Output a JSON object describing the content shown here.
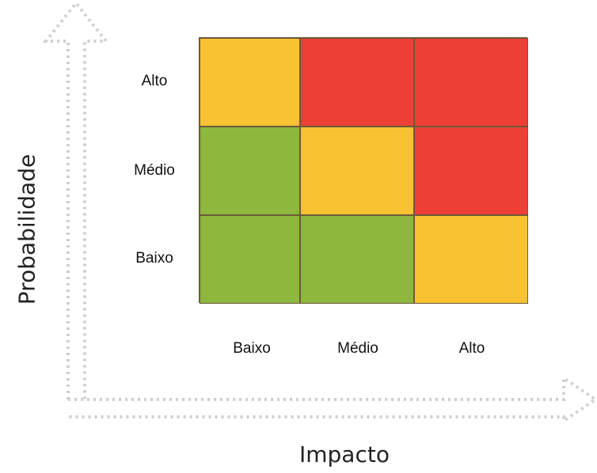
{
  "chart_data": {
    "type": "heatmap",
    "title": "",
    "xlabel": "Impacto",
    "ylabel": "Probabilidade",
    "x_categories": [
      "Baixo",
      "Médio",
      "Alto"
    ],
    "y_categories": [
      "Alto",
      "Médio",
      "Baixo"
    ],
    "cells": [
      [
        "yellow",
        "red",
        "red"
      ],
      [
        "green",
        "yellow",
        "red"
      ],
      [
        "green",
        "green",
        "yellow"
      ]
    ],
    "colors": {
      "green": "#8db73f",
      "yellow": "#f9c232",
      "red": "#ee3f36"
    }
  }
}
